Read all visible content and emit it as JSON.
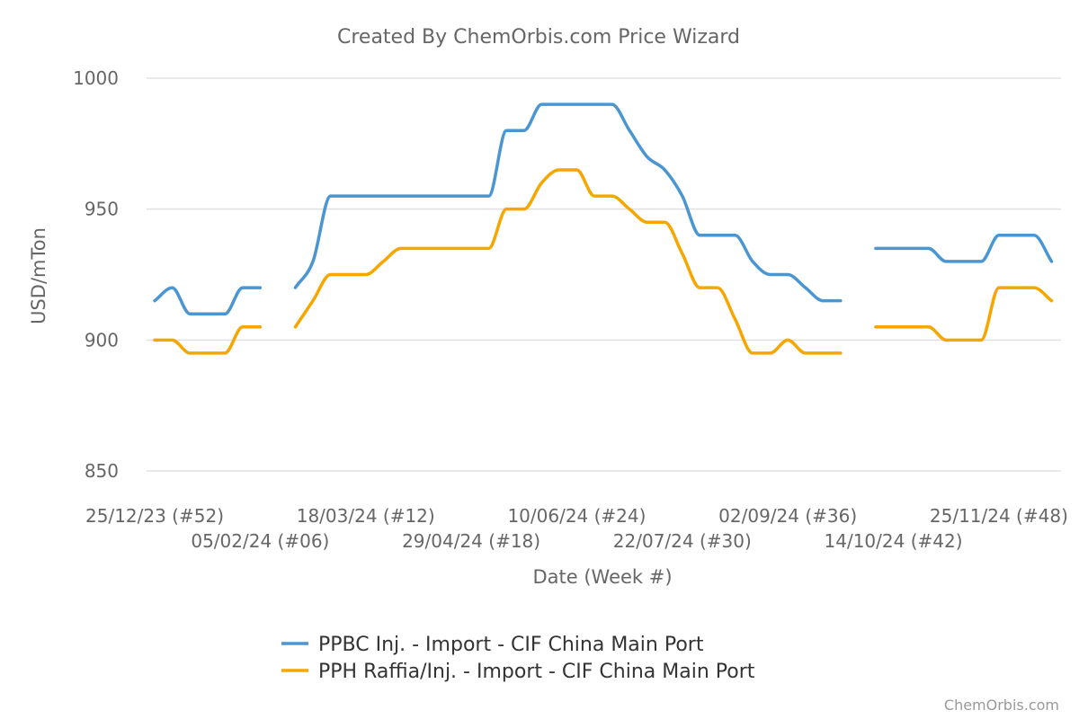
{
  "chart_data": {
    "type": "line",
    "title": "Created By ChemOrbis.com Price Wizard",
    "xlabel": "Date (Week #)",
    "ylabel": "USD/mTon",
    "ylim": [
      850,
      1000
    ],
    "yticks": [
      850,
      900,
      950,
      1000
    ],
    "grid": true,
    "legend_position": "bottom",
    "xtick_labels": [
      "25/12/23 (#52)",
      "05/02/24 (#06)",
      "18/03/24 (#12)",
      "29/04/24 (#18)",
      "10/06/24 (#24)",
      "22/07/24 (#30)",
      "02/09/24 (#36)",
      "14/10/24 (#42)",
      "25/11/24 (#48)"
    ],
    "xtick_label_weeks": [
      0,
      6,
      12,
      18,
      24,
      30,
      36,
      42,
      48
    ],
    "x_weeks": [
      0,
      1,
      2,
      3,
      4,
      5,
      6,
      7,
      8,
      9,
      10,
      11,
      12,
      13,
      14,
      15,
      16,
      17,
      18,
      19,
      20,
      21,
      22,
      23,
      24,
      25,
      26,
      27,
      28,
      29,
      30,
      31,
      32,
      33,
      34,
      35,
      36,
      37,
      38,
      39,
      40,
      41,
      42,
      43,
      44,
      45,
      46,
      47,
      48,
      49,
      50,
      51
    ],
    "series": [
      {
        "name": "PPBC Inj. - Import - CIF China Main Port",
        "color": "#4a96d2",
        "values": [
          915,
          920,
          910,
          910,
          910,
          920,
          920,
          null,
          920,
          930,
          955,
          955,
          955,
          955,
          955,
          955,
          955,
          955,
          955,
          955,
          980,
          980,
          990,
          990,
          990,
          990,
          990,
          980,
          970,
          965,
          955,
          940,
          940,
          940,
          930,
          925,
          925,
          920,
          915,
          915,
          null,
          935,
          935,
          935,
          935,
          930,
          930,
          930,
          940,
          940,
          940,
          930
        ]
      },
      {
        "name": "PPH Raffia/Inj. - Import - CIF China Main Port",
        "color": "#f7a600",
        "values": [
          900,
          900,
          895,
          895,
          895,
          905,
          905,
          null,
          905,
          915,
          925,
          925,
          925,
          930,
          935,
          935,
          935,
          935,
          935,
          935,
          950,
          950,
          960,
          965,
          965,
          955,
          955,
          950,
          945,
          945,
          933,
          920,
          920,
          908,
          895,
          895,
          900,
          895,
          895,
          895,
          null,
          905,
          905,
          905,
          905,
          900,
          900,
          900,
          920,
          920,
          920,
          915
        ]
      }
    ]
  },
  "credit": "ChemOrbis.com"
}
